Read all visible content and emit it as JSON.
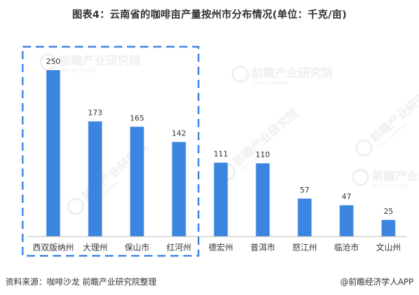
{
  "title": "图表4：云南省的咖啡亩产量按州市分布情况(单位：千克/亩)",
  "footer": {
    "source": "资料来源：咖啡沙龙  前瞻产业研究院整理",
    "brand": "@前瞻经济学人APP"
  },
  "watermark": {
    "text": "前瞻产业研究院",
    "subtext": "中国产业咨询领导者"
  },
  "colors": {
    "bar": "#3b84e0",
    "highlight_box": "#3b84e0",
    "axis": "#bfbfbf",
    "text": "#333333"
  },
  "chart_data": {
    "type": "bar",
    "categories": [
      "西双版纳州",
      "大理州",
      "保山市",
      "红河州",
      "德宏州",
      "普洱市",
      "怒江州",
      "临沧市",
      "文山州"
    ],
    "values": [
      250,
      173,
      165,
      142,
      111,
      110,
      57,
      47,
      25
    ],
    "ylim": [
      0,
      250
    ],
    "highlighted_categories": [
      "西双版纳州",
      "大理州",
      "保山市",
      "红河州"
    ],
    "grid": false,
    "legend": "none",
    "xlabel": "",
    "ylabel": ""
  }
}
